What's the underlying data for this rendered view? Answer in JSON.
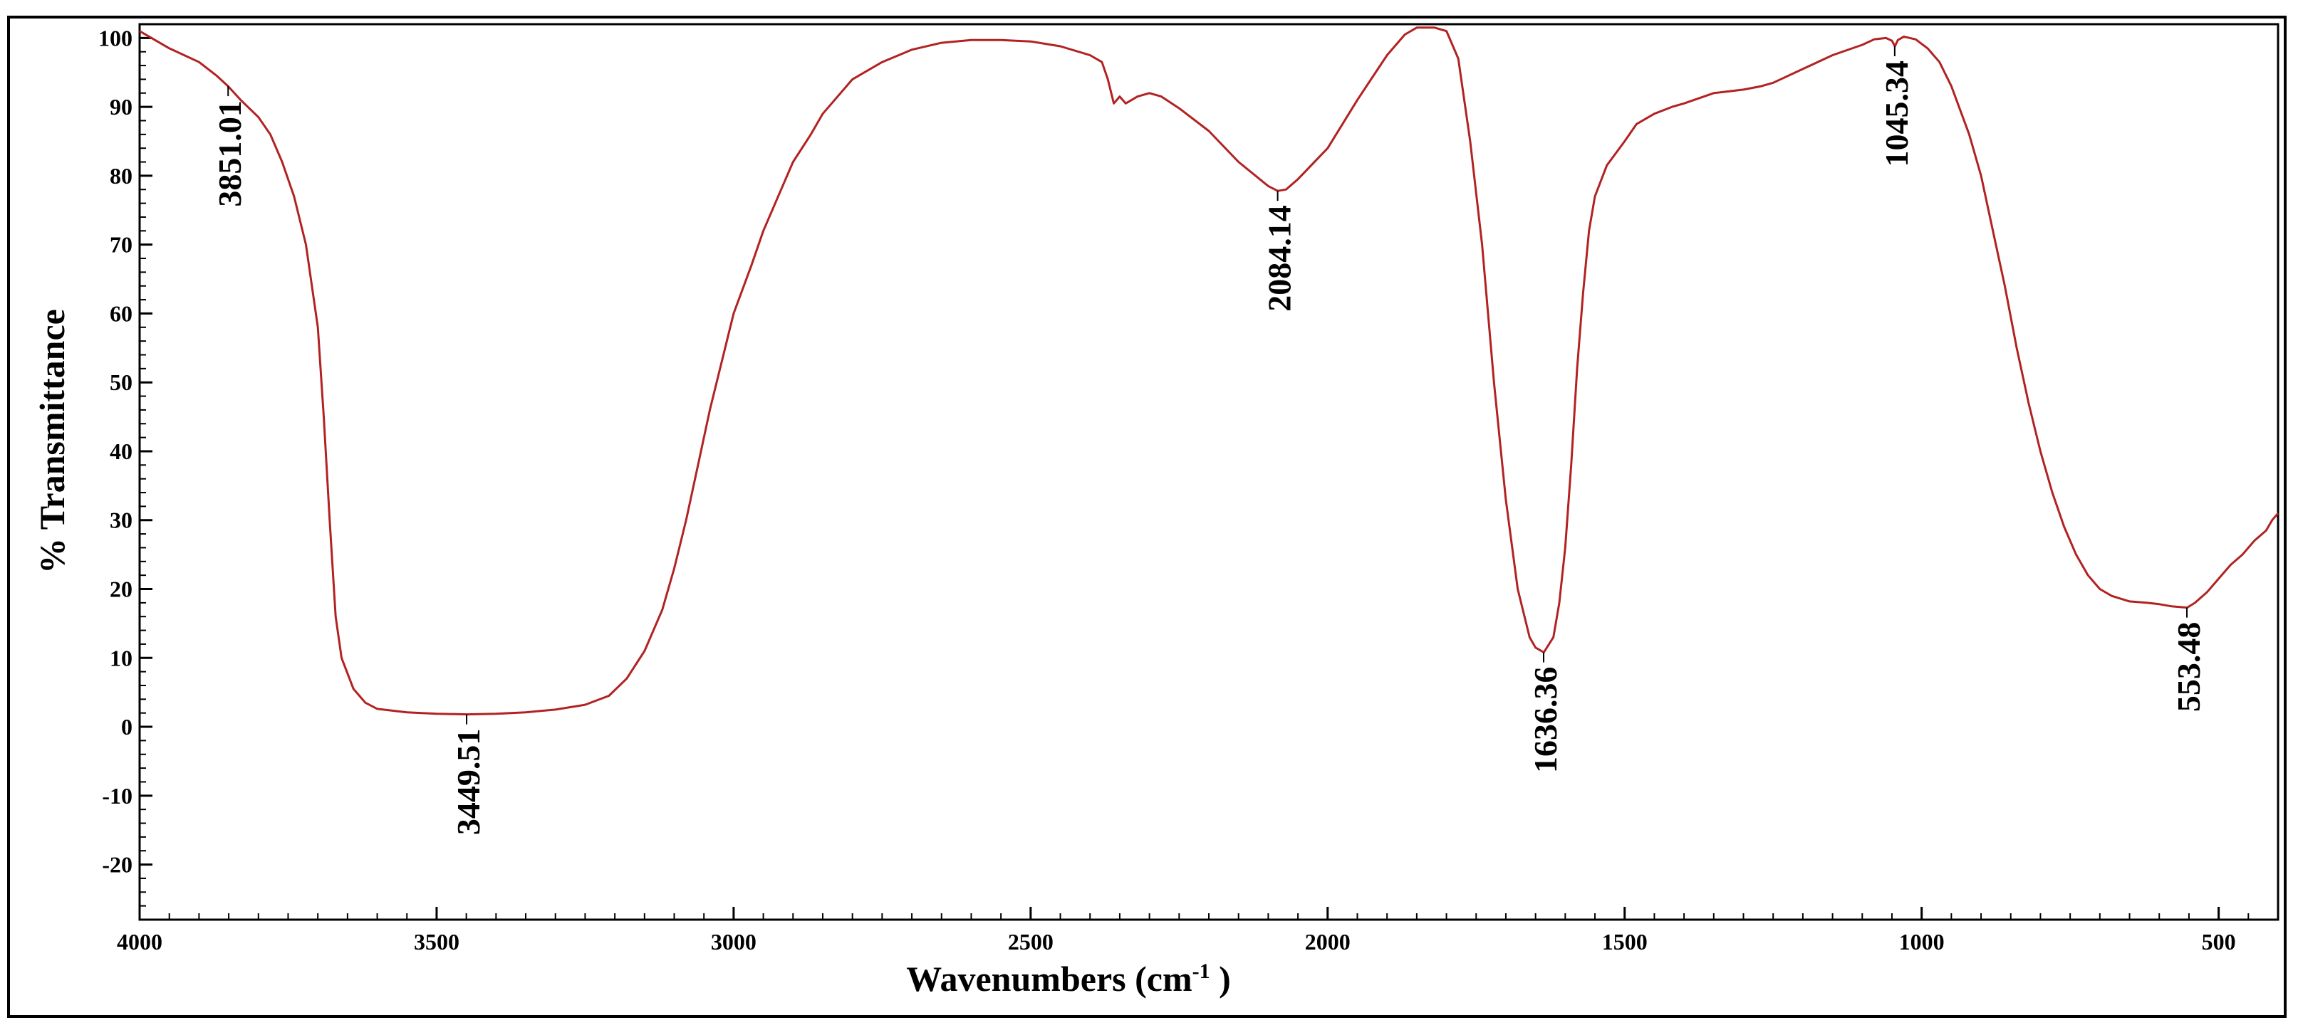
{
  "chart_data": {
    "type": "line",
    "title": "",
    "xlabel": "Wavenumbers (cm",
    "xlabel_sup": "-1",
    "xlabel_close": " )",
    "ylabel": "% Transmittance",
    "xlim": [
      4000,
      400
    ],
    "ylim": [
      -28,
      102
    ],
    "x_reversed": true,
    "grid": false,
    "x_ticks": [
      4000,
      3500,
      3000,
      2500,
      2000,
      1500,
      1000,
      500
    ],
    "y_ticks": [
      100,
      90,
      80,
      70,
      60,
      50,
      40,
      30,
      20,
      10,
      0,
      -10,
      -20
    ],
    "line_color": "#b22222",
    "series": [
      {
        "values": [
          [
            4000,
            101
          ],
          [
            3950,
            98.5
          ],
          [
            3900,
            96.5
          ],
          [
            3870,
            94.5
          ],
          [
            3851,
            93
          ],
          [
            3830,
            91
          ],
          [
            3800,
            88.5
          ],
          [
            3780,
            86
          ],
          [
            3760,
            82
          ],
          [
            3740,
            77
          ],
          [
            3720,
            70
          ],
          [
            3700,
            58
          ],
          [
            3690,
            45
          ],
          [
            3680,
            30
          ],
          [
            3670,
            16
          ],
          [
            3660,
            10
          ],
          [
            3640,
            5.5
          ],
          [
            3620,
            3.5
          ],
          [
            3600,
            2.6
          ],
          [
            3550,
            2.1
          ],
          [
            3500,
            1.9
          ],
          [
            3449,
            1.8
          ],
          [
            3400,
            1.9
          ],
          [
            3350,
            2.1
          ],
          [
            3300,
            2.5
          ],
          [
            3250,
            3.2
          ],
          [
            3210,
            4.5
          ],
          [
            3180,
            7
          ],
          [
            3150,
            11
          ],
          [
            3120,
            17
          ],
          [
            3100,
            23
          ],
          [
            3080,
            30
          ],
          [
            3060,
            38
          ],
          [
            3040,
            46
          ],
          [
            3020,
            53
          ],
          [
            3000,
            60
          ],
          [
            2970,
            67
          ],
          [
            2950,
            72
          ],
          [
            2920,
            78
          ],
          [
            2900,
            82
          ],
          [
            2870,
            86
          ],
          [
            2850,
            89
          ],
          [
            2820,
            92
          ],
          [
            2800,
            94
          ],
          [
            2750,
            96.5
          ],
          [
            2700,
            98.3
          ],
          [
            2650,
            99.3
          ],
          [
            2600,
            99.7
          ],
          [
            2550,
            99.7
          ],
          [
            2500,
            99.5
          ],
          [
            2450,
            98.8
          ],
          [
            2400,
            97.5
          ],
          [
            2380,
            96.5
          ],
          [
            2370,
            94
          ],
          [
            2360,
            90.5
          ],
          [
            2350,
            91.5
          ],
          [
            2340,
            90.5
          ],
          [
            2320,
            91.5
          ],
          [
            2300,
            92
          ],
          [
            2280,
            91.5
          ],
          [
            2250,
            89.8
          ],
          [
            2200,
            86.5
          ],
          [
            2150,
            82
          ],
          [
            2100,
            78.5
          ],
          [
            2084,
            77.8
          ],
          [
            2070,
            78
          ],
          [
            2050,
            79.5
          ],
          [
            2000,
            84
          ],
          [
            1950,
            91
          ],
          [
            1900,
            97.5
          ],
          [
            1870,
            100.5
          ],
          [
            1850,
            101.5
          ],
          [
            1820,
            101.5
          ],
          [
            1800,
            101
          ],
          [
            1780,
            97
          ],
          [
            1760,
            85
          ],
          [
            1740,
            70
          ],
          [
            1720,
            50
          ],
          [
            1700,
            33
          ],
          [
            1680,
            20
          ],
          [
            1660,
            13
          ],
          [
            1650,
            11.5
          ],
          [
            1636,
            10.8
          ],
          [
            1620,
            13
          ],
          [
            1610,
            18
          ],
          [
            1600,
            26
          ],
          [
            1590,
            38
          ],
          [
            1580,
            52
          ],
          [
            1570,
            63
          ],
          [
            1560,
            72
          ],
          [
            1550,
            77
          ],
          [
            1530,
            81.5
          ],
          [
            1500,
            85
          ],
          [
            1480,
            87.5
          ],
          [
            1450,
            89
          ],
          [
            1420,
            90
          ],
          [
            1400,
            90.5
          ],
          [
            1350,
            92
          ],
          [
            1300,
            92.5
          ],
          [
            1270,
            93
          ],
          [
            1250,
            93.5
          ],
          [
            1200,
            95.5
          ],
          [
            1150,
            97.5
          ],
          [
            1100,
            99
          ],
          [
            1080,
            99.8
          ],
          [
            1060,
            100
          ],
          [
            1050,
            99.6
          ],
          [
            1045,
            98.8
          ],
          [
            1040,
            99.7
          ],
          [
            1030,
            100.2
          ],
          [
            1010,
            99.8
          ],
          [
            990,
            98.5
          ],
          [
            970,
            96.5
          ],
          [
            950,
            93
          ],
          [
            920,
            86
          ],
          [
            900,
            80
          ],
          [
            880,
            72
          ],
          [
            860,
            64
          ],
          [
            840,
            55
          ],
          [
            820,
            47
          ],
          [
            800,
            40
          ],
          [
            780,
            34
          ],
          [
            760,
            29
          ],
          [
            740,
            25
          ],
          [
            720,
            22
          ],
          [
            700,
            20
          ],
          [
            680,
            19
          ],
          [
            650,
            18.2
          ],
          [
            620,
            18
          ],
          [
            600,
            17.8
          ],
          [
            580,
            17.5
          ],
          [
            553,
            17.3
          ],
          [
            540,
            18
          ],
          [
            520,
            19.5
          ],
          [
            500,
            21.5
          ],
          [
            480,
            23.5
          ],
          [
            460,
            25
          ],
          [
            440,
            27
          ],
          [
            420,
            28.5
          ],
          [
            410,
            30
          ],
          [
            400,
            31
          ]
        ]
      }
    ],
    "peaks": [
      {
        "x": 3851.01,
        "y": 93,
        "label": "3851.01"
      },
      {
        "x": 3449.51,
        "y": 1.8,
        "label": "3449.51"
      },
      {
        "x": 2084.14,
        "y": 77.8,
        "label": "2084.14"
      },
      {
        "x": 1636.36,
        "y": 10.8,
        "label": "1636.36"
      },
      {
        "x": 1045.34,
        "y": 98.8,
        "label": "1045.34"
      },
      {
        "x": 553.48,
        "y": 17.3,
        "label": "553.48"
      }
    ]
  }
}
